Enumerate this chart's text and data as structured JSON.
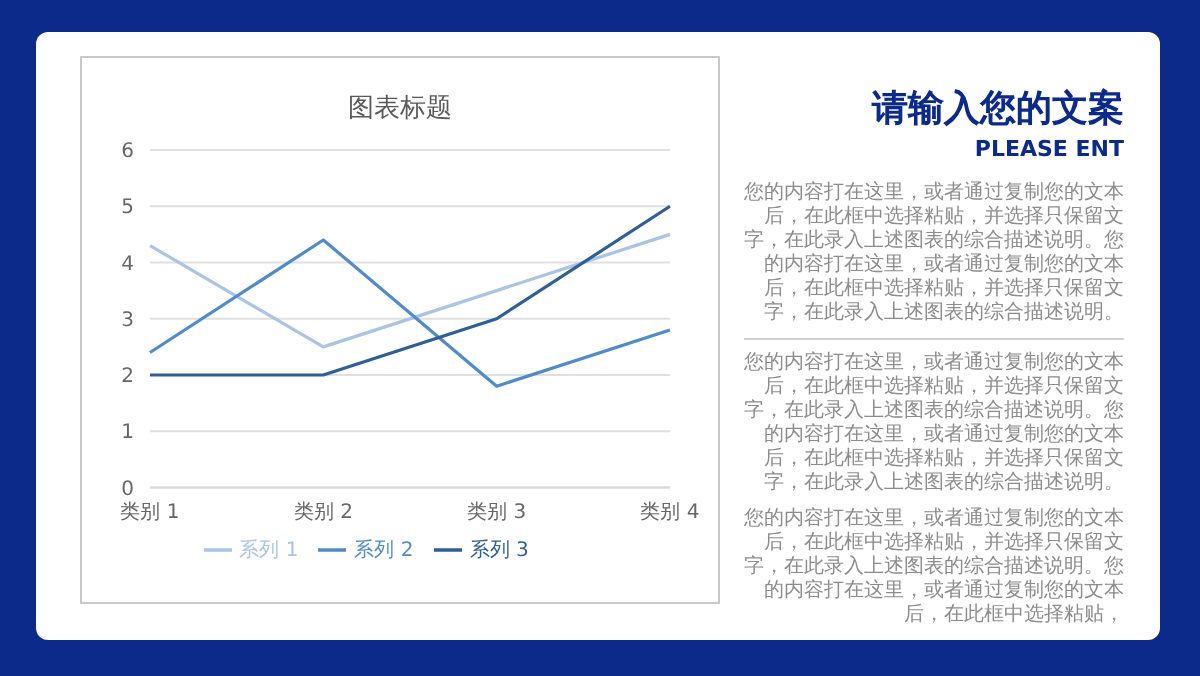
{
  "chart_data": {
    "type": "line",
    "title": "图表标题",
    "categories": [
      "类别 1",
      "类别 2",
      "类别 3",
      "类别 4"
    ],
    "series": [
      {
        "name": "系列 1",
        "color": "#a9c4e4",
        "values": [
          4.3,
          2.5,
          3.5,
          4.5
        ]
      },
      {
        "name": "系列 2",
        "color": "#4f8cc9",
        "values": [
          2.4,
          4.4,
          1.8,
          2.8
        ]
      },
      {
        "name": "系列 3",
        "color": "#2e5f99",
        "values": [
          2,
          2,
          3,
          5
        ]
      }
    ],
    "ylim": [
      0,
      6
    ],
    "yticks": [
      0,
      1,
      2,
      3,
      4,
      5,
      6
    ],
    "grid": "y",
    "legend": "bottom",
    "marker": "none",
    "annotations": [
      "请输入您的文案",
      "PLEASE ENT",
      "您的内容打在这里，或者通过复制您的文本后，在此框中选择粘贴，并选择只保留文字，在此录入上述图表的综合描述说明。您的内容打在这里，或者通过复制您的文本后，在此框中选择粘贴，并选择只保留文字，在此录入上述图表的综合描述说明。",
      "您的内容打在这里，或者通过复制您的文本后，在此框中选择粘贴，并选择只保留文字，在此录入上述图表的综合描述说明。您的内容打在这里，或者通过复制您的文本后，在此框中选择粘贴，并选择只保留文字，在此录入上述图表的综合描述说明。",
      "您的内容打在这里，或者通过复制您的文本后，在此框中选择粘贴，并选择只保留文字，在此录入上述图表的综合描述说明。您的内容打在这里，或者通过复制您的文本后，在此框中选择粘贴，"
    ]
  }
}
